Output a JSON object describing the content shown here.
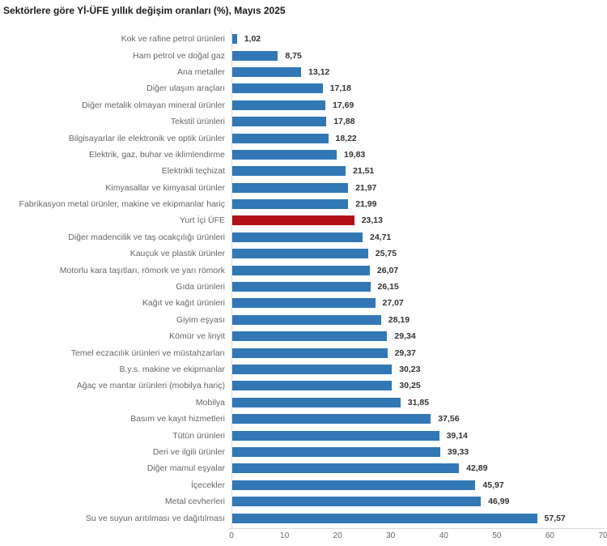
{
  "page": {
    "title": "Sektörlere göre Yİ-ÜFE yıllık değişim oranları (%), Mayıs 2025"
  },
  "colors": {
    "bar_blue": "#3178b5",
    "bar_highlight_red": "#b21118",
    "category_label": "#666666",
    "value_label": "#333333",
    "axis_line": "#d9d9d9",
    "tick_label": "#666666",
    "title_text": "#1a1a1a"
  },
  "chart_data": {
    "type": "bar",
    "orientation": "horizontal",
    "title": "Sektörlere göre Yİ-ÜFE yıllık değişim oranları (%), Mayıs 2025",
    "categories": [
      "Kok ve rafine petrol ürünleri",
      "Ham petrol ve doğal gaz",
      "Ana metaller",
      "Diğer ulaşım araçları",
      "Diğer metalik olmayan mineral ürünler",
      "Tekstil ürünleri",
      "Bilgisayarlar ile elektronik ve optik ürünler",
      "Elektrik, gaz, buhar ve iklimlendirme",
      "Elektrikli teçhizat",
      "Kimyasallar ve kimyasal ürünler",
      "Fabrikasyon metal ürünler, makine ve ekipmanlar hariç",
      "Yurt İçi ÜFE",
      "Diğer madencilik ve taş ocakçılığı ürünleri",
      "Kauçuk ve plastik ürünler",
      "Motorlu kara taşıtları, römork ve yarı römork",
      "Gıda ürünleri",
      "Kağıt ve kağıt ürünleri",
      "Giyim eşyası",
      "Kömür ve linyit",
      "Temel eczacılık ürünleri ve müstahzarları",
      "B.y.s. makine ve ekipmanlar",
      "Ağaç ve mantar ürünleri (mobilya hariç)",
      "Mobilya",
      "Basım ve kayıt hizmetleri",
      "Tütün ürünleri",
      "Deri ve ilgili ürünler",
      "Diğer mamul eşyalar",
      "İçecekler",
      "Metal cevherleri",
      "Su ve suyun arıtılması ve dağıtılması"
    ],
    "values": [
      1.02,
      8.75,
      13.12,
      17.18,
      17.69,
      17.88,
      18.22,
      19.83,
      21.51,
      21.97,
      21.99,
      23.13,
      24.71,
      25.75,
      26.07,
      26.15,
      27.07,
      28.19,
      29.34,
      29.37,
      30.23,
      30.25,
      31.85,
      37.56,
      39.14,
      39.33,
      42.89,
      45.97,
      46.99,
      57.57
    ],
    "value_labels": [
      "1,02",
      "8,75",
      "13,12",
      "17,18",
      "17,69",
      "17,88",
      "18,22",
      "19,83",
      "21,51",
      "21,97",
      "21,99",
      "23,13",
      "24,71",
      "25,75",
      "26,07",
      "26,15",
      "27,07",
      "28,19",
      "29,34",
      "29,37",
      "30,23",
      "30,25",
      "31,85",
      "37,56",
      "39,14",
      "39,33",
      "42,89",
      "45,97",
      "46,99",
      "57,57"
    ],
    "highlight_index": 11,
    "highlight_category": "Yurt İçi ÜFE",
    "xlim": [
      0,
      70
    ],
    "x_ticks": [
      "0",
      "10",
      "20",
      "30",
      "40",
      "50",
      "60",
      "70"
    ],
    "grid": false,
    "value_label_position": "end-of-bar"
  }
}
